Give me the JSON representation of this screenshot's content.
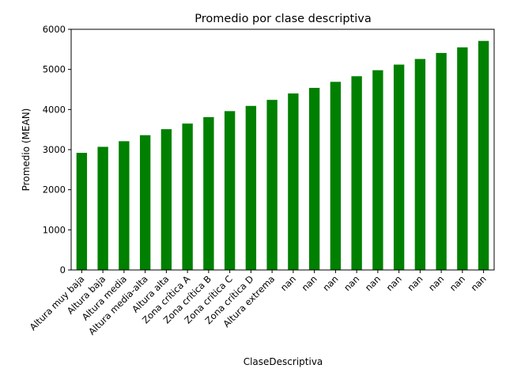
{
  "chart_data": {
    "type": "bar",
    "title": "Promedio por clase descriptiva",
    "xlabel": "ClaseDescriptiva",
    "ylabel": "Promedio (MEAN)",
    "ylim": [
      0,
      6000
    ],
    "yticks": [
      "0",
      "1000",
      "2000",
      "3000",
      "4000",
      "5000",
      "6000"
    ],
    "grid": false,
    "bar_color": "#008000",
    "categories": [
      "Altura muy baja",
      "Altura baja",
      "Altura media",
      "Altura media-alta",
      "Altura alta",
      "Zona crítica A",
      "Zona crítica B",
      "Zona crítica C",
      "Zona crítica D",
      "Altura extrema",
      "nan",
      "nan",
      "nan",
      "nan",
      "nan",
      "nan",
      "nan",
      "nan",
      "nan",
      "nan"
    ],
    "values": [
      2920,
      3070,
      3210,
      3360,
      3510,
      3650,
      3810,
      3960,
      4090,
      4240,
      4400,
      4540,
      4690,
      4830,
      4980,
      5120,
      5260,
      5410,
      5550,
      5710
    ]
  }
}
